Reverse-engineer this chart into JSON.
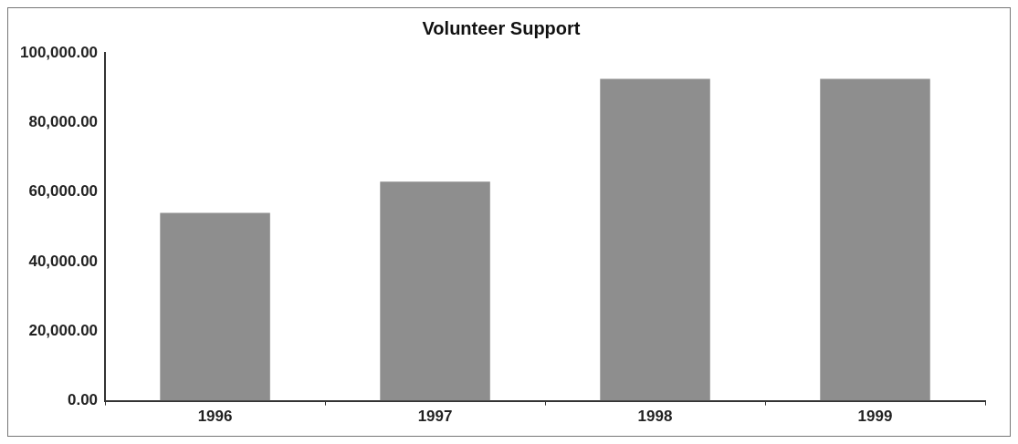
{
  "chart_data": {
    "type": "bar",
    "title": "Volunteer Support",
    "categories": [
      "1996",
      "1997",
      "1998",
      "1999"
    ],
    "values": [
      54000,
      63000,
      92500,
      92500
    ],
    "color": "#8e8e8e",
    "ylim": [
      0,
      100000
    ],
    "yticks": [
      {
        "value": 0,
        "label": "0.00"
      },
      {
        "value": 20000,
        "label": "20,000.00"
      },
      {
        "value": 40000,
        "label": "40,000.00"
      },
      {
        "value": 60000,
        "label": "60,000.00"
      },
      {
        "value": 80000,
        "label": "80,000.00"
      },
      {
        "value": 100000,
        "label": "100,000.00"
      }
    ],
    "grid": false,
    "legend": false
  }
}
